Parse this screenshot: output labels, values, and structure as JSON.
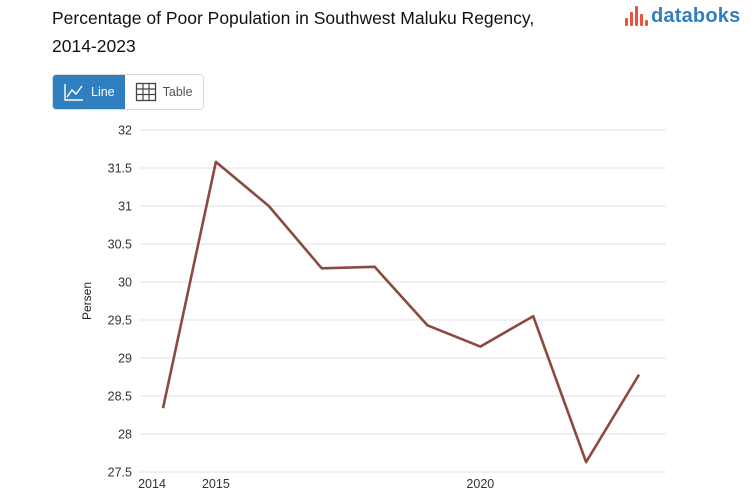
{
  "header": {
    "title_line1": "Percentage of Poor Population in Southwest Maluku Regency,",
    "title_line2": "2014-2023",
    "logo_text": "databoks"
  },
  "tabs": [
    {
      "label": "Line",
      "icon": "line-chart-icon",
      "active": true
    },
    {
      "label": "Table",
      "icon": "table-grid-icon",
      "active": false
    }
  ],
  "colors": {
    "line": "#8b4a3f",
    "accent": "#2f7fc1",
    "logo_mark": "#e8553f",
    "grid": "#e2e2e2"
  },
  "chart_data": {
    "type": "line",
    "title": "Percentage of Poor Population in Southwest Maluku Regency, 2014-2023",
    "xlabel": "",
    "ylabel": "Persen",
    "x": [
      2014,
      2015,
      2016,
      2017,
      2018,
      2019,
      2020,
      2021,
      2022,
      2023
    ],
    "x_tick_labels": [
      "2014",
      "2015",
      "2020"
    ],
    "y_tick_labels": [
      "32",
      "31.5",
      "31",
      "30.5",
      "30",
      "29.5",
      "29",
      "28.5",
      "28",
      "27.5"
    ],
    "ylim": [
      27.5,
      32
    ],
    "grid": true,
    "legend": "none",
    "series": [
      {
        "values": [
          28.34,
          31.58,
          31.0,
          30.18,
          30.2,
          29.43,
          29.15,
          29.55,
          27.63,
          28.78
        ]
      }
    ]
  }
}
